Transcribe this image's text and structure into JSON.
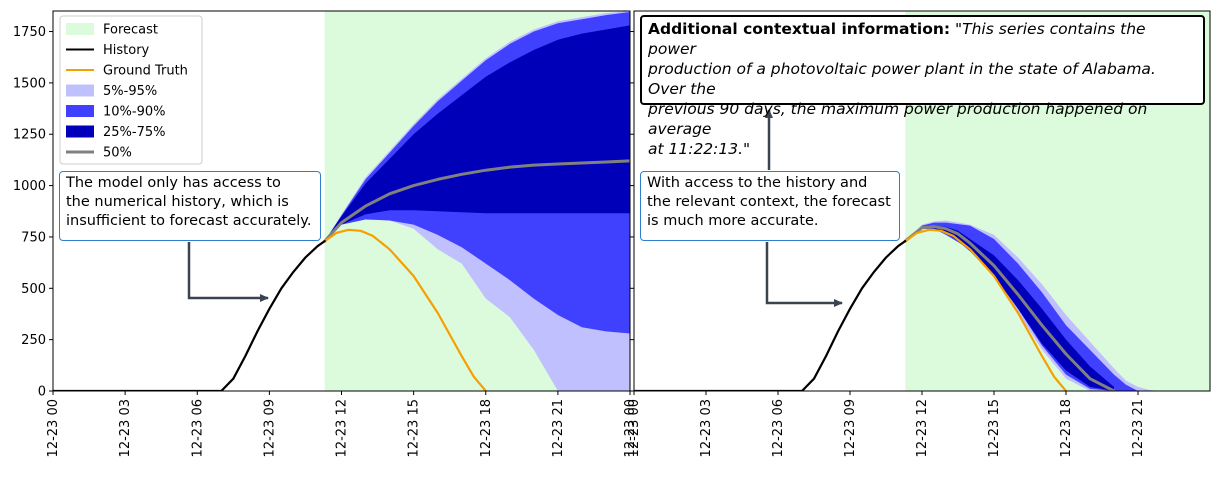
{
  "chart_data": [
    {
      "type": "area",
      "panel": "left",
      "x_tick_labels": [
        "12-23 00",
        "12-23 03",
        "12-23 06",
        "12-23 09",
        "12-23 12",
        "12-23 15",
        "12-23 18",
        "12-23 21",
        "12-23 00"
      ],
      "y_tick_labels": [
        "0",
        "250",
        "500",
        "750",
        "1000",
        "1250",
        "1500",
        "1750"
      ],
      "ylim": [
        0,
        1850
      ],
      "x_unit": "hour of day (00 = 12-23 00)",
      "legend": {
        "placement": "top-left",
        "entries": [
          "Forecast",
          "History",
          "Ground Truth",
          "5%-95%",
          "10%-90%",
          "25%-75%",
          "50%"
        ]
      },
      "forecast_region": [
        11.3,
        24
      ],
      "history": {
        "x": [
          0,
          6.5,
          7.0,
          7.5,
          8.0,
          8.5,
          9.0,
          9.5,
          10.0,
          10.5,
          11.0,
          11.3
        ],
        "y": [
          0,
          0,
          0,
          60,
          170,
          290,
          400,
          500,
          580,
          650,
          705,
          730
        ]
      },
      "ground_truth": {
        "x": [
          11.3,
          11.8,
          12.3,
          12.8,
          13.3,
          14.0,
          15.0,
          16.0,
          17.0,
          17.5,
          18.0
        ],
        "y": [
          730,
          770,
          785,
          780,
          755,
          690,
          560,
          380,
          170,
          70,
          0
        ]
      },
      "band_5_95": {
        "x": [
          11.3,
          12.0,
          13.0,
          14.0,
          15.0,
          16.0,
          17.0,
          18.0,
          19.0,
          20.0,
          21.0,
          22.0,
          23.0,
          24.0
        ],
        "upper": [
          730,
          860,
          1040,
          1170,
          1300,
          1420,
          1520,
          1620,
          1700,
          1760,
          1800,
          1820,
          1840,
          1850
        ],
        "lower": [
          730,
          810,
          840,
          830,
          790,
          690,
          620,
          450,
          360,
          200,
          0,
          0,
          0,
          0
        ]
      },
      "band_10_90": {
        "x": [
          11.3,
          12.0,
          13.0,
          14.0,
          15.0,
          16.0,
          17.0,
          18.0,
          19.0,
          20.0,
          21.0,
          22.0,
          23.0,
          24.0
        ],
        "upper": [
          730,
          855,
          1030,
          1160,
          1290,
          1410,
          1510,
          1610,
          1690,
          1750,
          1790,
          1810,
          1830,
          1845
        ],
        "lower": [
          730,
          810,
          835,
          830,
          810,
          760,
          700,
          620,
          540,
          450,
          370,
          310,
          290,
          280
        ]
      },
      "band_25_75": {
        "x": [
          11.3,
          12.0,
          13.0,
          14.0,
          15.0,
          16.0,
          17.0,
          18.0,
          19.0,
          20.0,
          21.0,
          22.0,
          23.0,
          24.0
        ],
        "upper": [
          730,
          850,
          1010,
          1130,
          1250,
          1350,
          1440,
          1530,
          1600,
          1660,
          1710,
          1740,
          1760,
          1780
        ],
        "lower": [
          730,
          810,
          860,
          880,
          880,
          875,
          870,
          865,
          865,
          865,
          865,
          865,
          865,
          865
        ]
      },
      "median": {
        "x": [
          11.3,
          12.0,
          13.0,
          14.0,
          15.0,
          16.0,
          17.0,
          18.0,
          19.0,
          20.0,
          21.0,
          22.0,
          23.0,
          24.0
        ],
        "y": [
          730,
          820,
          900,
          960,
          1000,
          1030,
          1055,
          1075,
          1090,
          1100,
          1105,
          1110,
          1115,
          1120
        ]
      }
    },
    {
      "type": "area",
      "panel": "right",
      "x_tick_labels": [
        "12-23 00",
        "12-23 03",
        "12-23 06",
        "12-23 09",
        "12-23 12",
        "12-23 15",
        "12-23 18",
        "12-23 21"
      ],
      "ylim": [
        0,
        1850
      ],
      "forecast_region": [
        11.3,
        24
      ],
      "history": {
        "x": [
          0,
          6.5,
          7.0,
          7.5,
          8.0,
          8.5,
          9.0,
          9.5,
          10.0,
          10.5,
          11.0,
          11.3
        ],
        "y": [
          0,
          0,
          0,
          60,
          170,
          290,
          400,
          500,
          580,
          650,
          705,
          730
        ]
      },
      "ground_truth": {
        "x": [
          11.3,
          11.8,
          12.3,
          12.8,
          13.3,
          14.0,
          15.0,
          16.0,
          17.0,
          17.5,
          18.0
        ],
        "y": [
          730,
          770,
          785,
          780,
          755,
          690,
          560,
          380,
          170,
          70,
          0
        ]
      },
      "band_5_95": {
        "x": [
          11.3,
          12.0,
          12.5,
          13.0,
          14.0,
          15.0,
          16.0,
          17.0,
          18.0,
          19.0,
          20.0,
          20.5,
          21.0,
          21.5,
          22.0
        ],
        "upper": [
          730,
          810,
          825,
          830,
          810,
          760,
          650,
          520,
          370,
          240,
          110,
          50,
          20,
          5,
          0
        ],
        "lower": [
          730,
          790,
          790,
          760,
          690,
          560,
          380,
          200,
          60,
          0,
          0,
          0,
          0,
          0,
          0
        ]
      },
      "band_10_90": {
        "x": [
          11.3,
          12.0,
          12.5,
          13.0,
          14.0,
          15.0,
          16.0,
          17.0,
          18.0,
          19.0,
          20.0,
          20.5,
          21.0
        ],
        "upper": [
          730,
          805,
          820,
          820,
          805,
          740,
          620,
          480,
          320,
          200,
          80,
          30,
          0
        ],
        "lower": [
          730,
          790,
          790,
          760,
          690,
          570,
          400,
          220,
          80,
          10,
          0,
          0,
          0
        ]
      },
      "band_25_75": {
        "x": [
          11.3,
          12.0,
          12.5,
          13.0,
          13.5,
          14.0,
          15.0,
          16.0,
          17.0,
          18.0,
          19.0,
          20.0
        ],
        "upper": [
          730,
          800,
          805,
          800,
          780,
          740,
          660,
          540,
          400,
          250,
          120,
          20
        ],
        "lower": [
          730,
          790,
          790,
          770,
          730,
          680,
          560,
          400,
          230,
          100,
          20,
          0
        ]
      },
      "median": {
        "x": [
          11.3,
          12.0,
          12.5,
          13.0,
          13.5,
          14.0,
          15.0,
          16.0,
          17.0,
          18.0,
          19.0,
          20.0
        ],
        "y": [
          730,
          795,
          800,
          790,
          765,
          720,
          610,
          470,
          320,
          180,
          60,
          0
        ]
      }
    }
  ],
  "legend_labels": {
    "forecast": "Forecast",
    "history": "History",
    "ground_truth": "Ground Truth",
    "band_5_95": "5%-95%",
    "band_10_90": "10%-90%",
    "band_25_75": "25%-75%",
    "median": "50%"
  },
  "annotations": {
    "left_note_lines": [
      "The model only has access to",
      "the numerical history, which is",
      "insufficient to forecast accurately."
    ],
    "right_note_lines": [
      "With access to the history and",
      "the relevant context, the forecast",
      "is much more accurate."
    ],
    "context_title": "Additional contextual information:",
    "context_lines": [
      "\"This series contains the power",
      "production of a photovoltaic power plant in the state of Alabama. Over the",
      "previous 90 days, the maximum power production happened on average",
      "at 11:22:13.\""
    ]
  },
  "colors": {
    "forecast_region": "#dcfbdc",
    "history": "#000000",
    "ground_truth": "#f5a000",
    "band_5_95": "#c0c0ff",
    "band_10_90": "#4040ff",
    "band_25_75": "#0000b8",
    "median": "#808080",
    "note_border": "#2f7fd0",
    "arrow": "#3a4450"
  }
}
